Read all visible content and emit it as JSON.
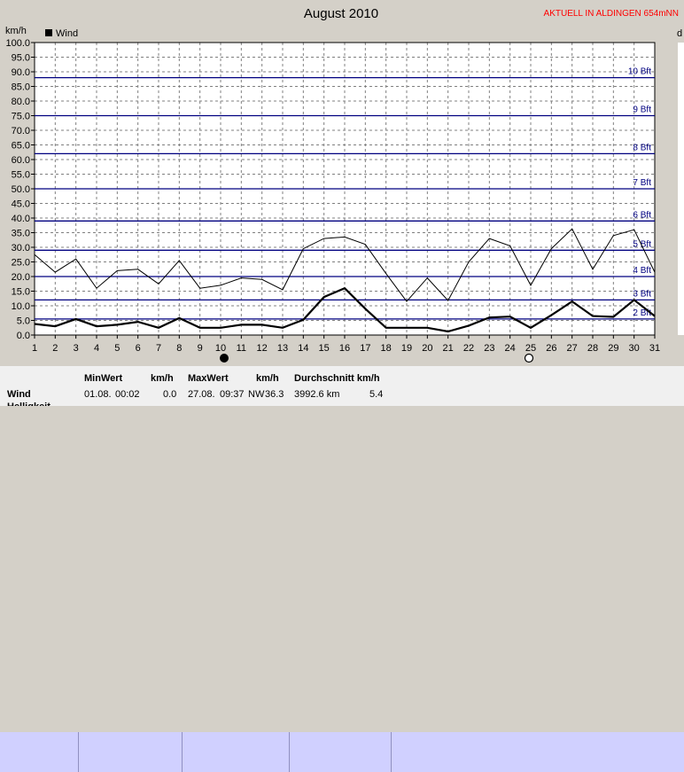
{
  "title": "August 2010",
  "header_right": "AKTUELL IN ALDINGEN 654mNN",
  "y_unit": "km/h",
  "right_edge_label": "d",
  "legend": "Wind",
  "table": {
    "row_label": "Wind",
    "min_header": "MinWert",
    "min_unit": "km/h",
    "min_date": "01.08.",
    "min_time": "00:02",
    "min_value": "0.0",
    "max_header": "MaxWert",
    "max_unit": "km/h",
    "max_date": "27.08.",
    "max_time": "09:37",
    "max_dir": "NW",
    "max_value": "36.3",
    "avg_header": "Durchschnitt km/h",
    "avg_distance": "3992.6 km",
    "avg_value": "5.4",
    "partial_label": "Helligkeit"
  },
  "chart_data": {
    "type": "line",
    "title": "August 2010",
    "ylabel": "km/h",
    "x": [
      1,
      2,
      3,
      4,
      5,
      6,
      7,
      8,
      9,
      10,
      11,
      12,
      13,
      14,
      15,
      16,
      17,
      18,
      19,
      20,
      21,
      22,
      23,
      24,
      25,
      26,
      27,
      28,
      29,
      30,
      31
    ],
    "ylim": [
      0,
      100
    ],
    "yticks": [
      0.0,
      5.0,
      10.0,
      15.0,
      20.0,
      25.0,
      30.0,
      35.0,
      40.0,
      45.0,
      50.0,
      55.0,
      60.0,
      65.0,
      70.0,
      75.0,
      80.0,
      85.0,
      90.0,
      95.0,
      100.0
    ],
    "beaufort": [
      {
        "label": "2 Bft",
        "value": 5.5
      },
      {
        "label": "3 Bft",
        "value": 12
      },
      {
        "label": "4 Bft",
        "value": 20
      },
      {
        "label": "5 Bft",
        "value": 29
      },
      {
        "label": "6 Bft",
        "value": 39
      },
      {
        "label": "7 Bft",
        "value": 50
      },
      {
        "label": "8 Bft",
        "value": 62
      },
      {
        "label": "9 Bft",
        "value": 75
      },
      {
        "label": "10 Bft",
        "value": 88
      }
    ],
    "series": [
      {
        "name": "Wind",
        "style": "bold",
        "values": [
          3.8,
          3.0,
          5.5,
          3.0,
          3.5,
          4.5,
          2.5,
          5.8,
          2.5,
          2.5,
          3.5,
          3.5,
          2.5,
          5.2,
          13.0,
          16.0,
          9.0,
          2.5,
          2.5,
          2.5,
          1.2,
          3.2,
          6.0,
          6.3,
          2.5,
          6.8,
          11.5,
          6.5,
          6.2,
          12.0,
          6.5
        ]
      },
      {
        "values": [
          27.5,
          21.5,
          26.0,
          16.0,
          22.0,
          22.5,
          17.5,
          25.5,
          16.0,
          17.0,
          19.5,
          19.0,
          15.5,
          29.5,
          33.0,
          33.5,
          31.0,
          21.0,
          11.5,
          19.5,
          11.8,
          25.0,
          33.0,
          30.5,
          17.0,
          29.5,
          36.3,
          22.5,
          34.0,
          36.0,
          21.5
        ]
      }
    ],
    "moon_new_day": 10,
    "moon_full_day": 25
  }
}
